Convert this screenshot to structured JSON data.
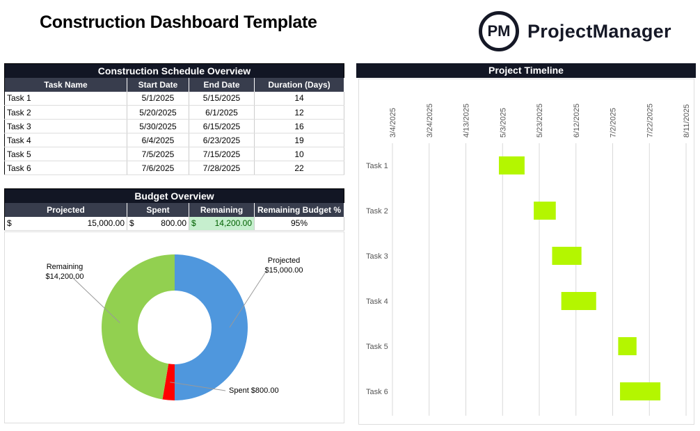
{
  "title": "Construction Dashboard Template",
  "logo": {
    "mark": "PM",
    "name": "ProjectManager"
  },
  "schedule": {
    "title": "Construction Schedule Overview",
    "columns": [
      "Task Name",
      "Start Date",
      "End Date",
      "Duration (Days)"
    ],
    "rows": [
      [
        "Task 1",
        "5/1/2025",
        "5/15/2025",
        "14"
      ],
      [
        "Task 2",
        "5/20/2025",
        "6/1/2025",
        "12"
      ],
      [
        "Task 3",
        "5/30/2025",
        "6/15/2025",
        "16"
      ],
      [
        "Task 4",
        "6/4/2025",
        "6/23/2025",
        "19"
      ],
      [
        "Task 5",
        "7/5/2025",
        "7/15/2025",
        "10"
      ],
      [
        "Task 6",
        "7/6/2025",
        "7/28/2025",
        "22"
      ]
    ]
  },
  "budget": {
    "title": "Budget Overview",
    "columns": [
      "Projected",
      "Spent",
      "Remaining",
      "Remaining Budget %"
    ],
    "currency": "$",
    "projected": "15,000.00",
    "spent": "800.00",
    "remaining": "14,200.00",
    "remaining_pct": "95%",
    "remaining_bg": "#c6efce",
    "remaining_color": "#006100"
  },
  "chart_data": [
    {
      "type": "pie",
      "variant": "donut",
      "slices": [
        {
          "label": "Projected",
          "value": 15000,
          "display": "$15,000.00",
          "color": "#4f97dd"
        },
        {
          "label": "Spent",
          "value": 800,
          "display": "$800.00",
          "color": "#ff0000"
        },
        {
          "label": "Remaining",
          "value": 14200,
          "display": "$14,200.00",
          "color": "#92d050"
        }
      ]
    },
    {
      "type": "bar",
      "variant": "gantt",
      "title": "Project Timeline",
      "xlim": [
        "3/4/2025",
        "8/11/2025"
      ],
      "xticks": [
        "3/4/2025",
        "3/24/2025",
        "4/13/2025",
        "5/3/2025",
        "5/23/2025",
        "6/12/2025",
        "7/2/2025",
        "7/22/2025",
        "8/11/2025"
      ],
      "categories": [
        "Task 1",
        "Task 2",
        "Task 3",
        "Task 4",
        "Task 5",
        "Task 6"
      ],
      "start": [
        "2025-05-01",
        "2025-05-20",
        "2025-05-30",
        "2025-06-04",
        "2025-07-05",
        "2025-07-06"
      ],
      "duration_days": [
        14,
        12,
        16,
        19,
        10,
        22
      ],
      "color": "#b4f600",
      "grid": true
    }
  ]
}
